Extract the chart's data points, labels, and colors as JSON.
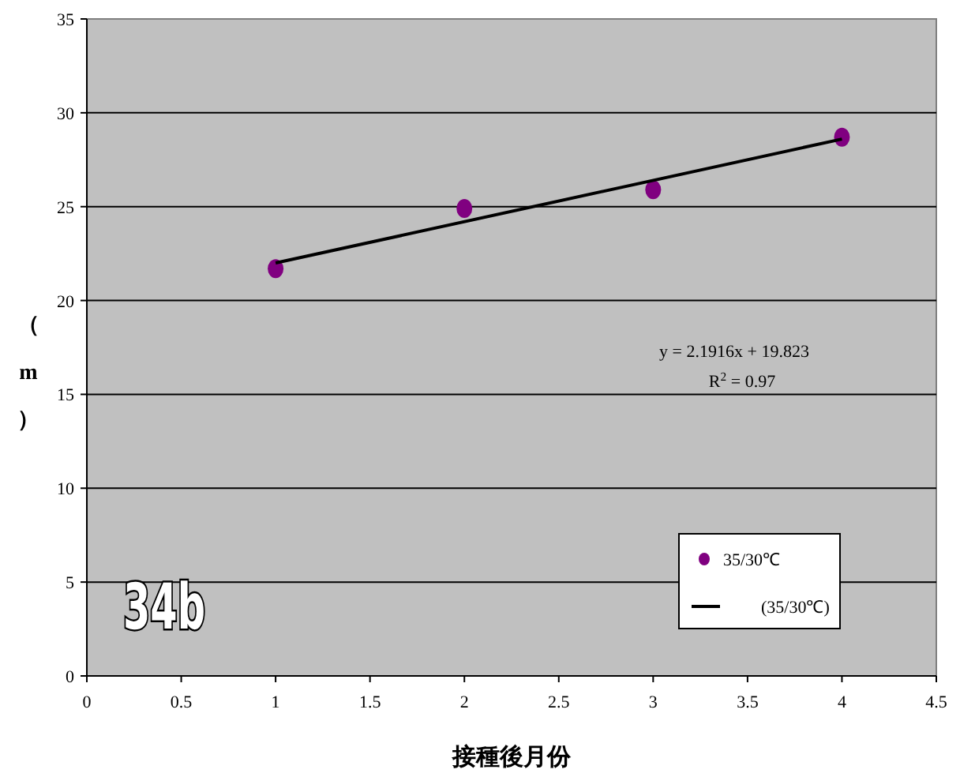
{
  "chart_data": {
    "type": "scatter",
    "xlabel": "接種後月份",
    "ylabel": "（m）",
    "xlim": [
      0,
      4.5
    ],
    "xticks": [
      0,
      0.5,
      1,
      1.5,
      2,
      2.5,
      3,
      3.5,
      4,
      4.5
    ],
    "ylim": [
      0,
      35
    ],
    "yticks": [
      0,
      5,
      10,
      15,
      20,
      25,
      30,
      35
    ],
    "grid": "y",
    "legend": "bottom right",
    "series": [
      {
        "name": "35/30℃",
        "color": "#800080",
        "marker": "circle",
        "x": [
          1,
          2,
          3,
          4
        ],
        "values": [
          21.7,
          24.9,
          25.9,
          28.7
        ]
      },
      {
        "name": "(35/30℃)",
        "type": "line",
        "color": "#000000",
        "x": [
          1,
          4
        ],
        "values": [
          22.0,
          28.6
        ]
      }
    ],
    "annotations": [
      "y = 2.1916x + 19.823",
      "R$^{2}$ = 0.97",
      "34b"
    ]
  }
}
